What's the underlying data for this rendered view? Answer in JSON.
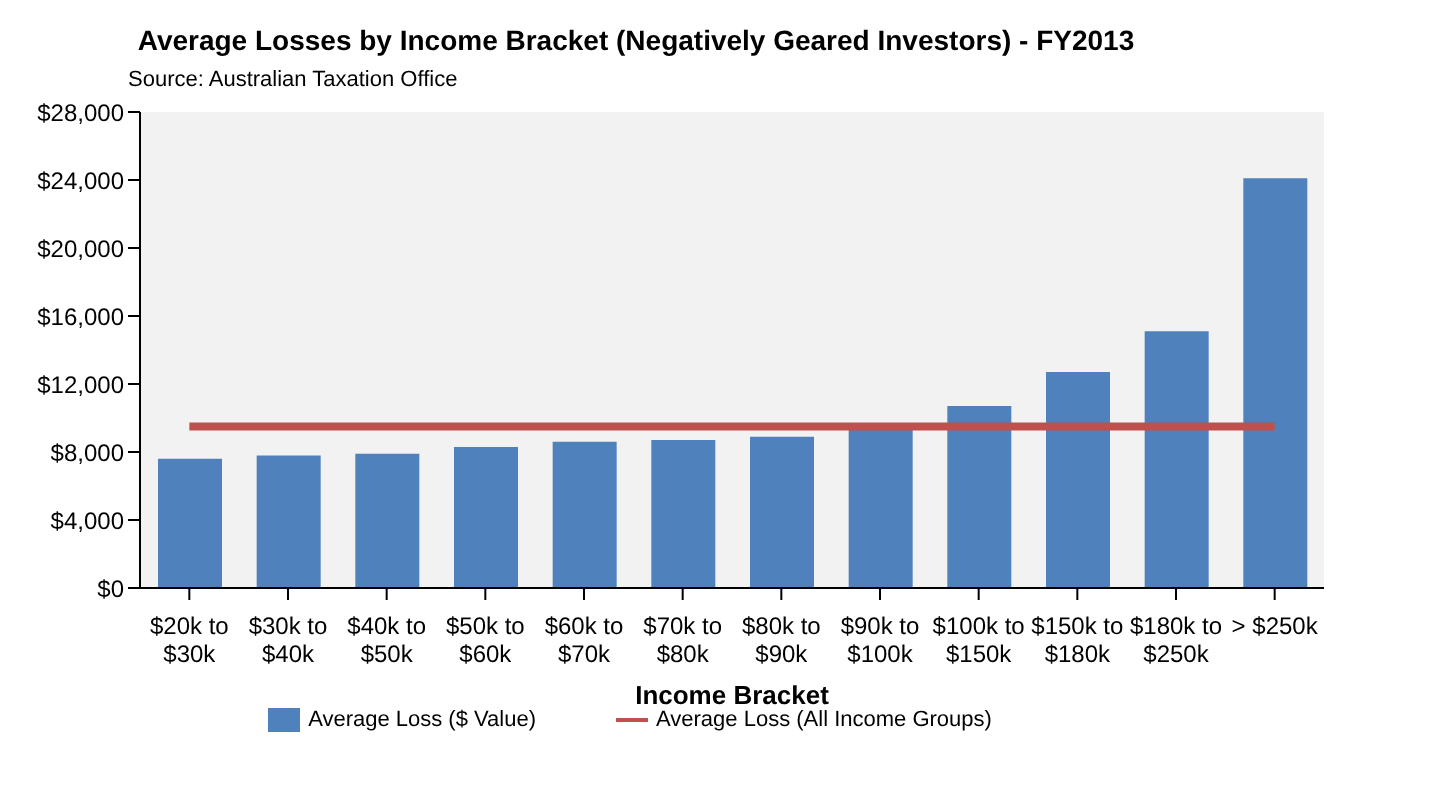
{
  "chart_data": {
    "type": "bar",
    "title": "Average Losses by Income Bracket (Negatively Geared Investors) - FY2013",
    "annotations": [
      "Source: Australian Taxation Office"
    ],
    "xlabel": "Income Bracket",
    "categories": [
      "$20k to $30k",
      "$30k to $40k",
      "$40k to $50k",
      "$50k to $60k",
      "$60k to $70k",
      "$70k to $80k",
      "$80k to $90k",
      "$90k to $100k",
      "$100k to $150k",
      "$150k to $180k",
      "$180k to $250k",
      "> $250k"
    ],
    "series": [
      {
        "name": "Average Loss ($ Value)",
        "color": "#4f81bd",
        "values": [
          7600,
          7800,
          7900,
          8300,
          8600,
          8700,
          8900,
          9400,
          10700,
          12700,
          15100,
          24100
        ]
      },
      {
        "name": "Average Loss (All Income Groups)",
        "type": "line",
        "color": "#c0504d",
        "values": [
          9500,
          9500,
          9500,
          9500,
          9500,
          9500,
          9500,
          9500,
          9500,
          9500,
          9500,
          9500
        ]
      }
    ],
    "ylim": [
      0,
      28000
    ],
    "yticks": [
      {
        "value": 0,
        "label": "$0"
      },
      {
        "value": 4000,
        "label": "$4,000"
      },
      {
        "value": 8000,
        "label": "$8,000"
      },
      {
        "value": 12000,
        "label": "$12,000"
      },
      {
        "value": 16000,
        "label": "$16,000"
      },
      {
        "value": 20000,
        "label": "$20,000"
      },
      {
        "value": 24000,
        "label": "$24,000"
      },
      {
        "value": 28000,
        "label": "$28,000"
      }
    ],
    "grid": false,
    "legend": "bottom",
    "marker": "none",
    "line_style": "solid"
  }
}
